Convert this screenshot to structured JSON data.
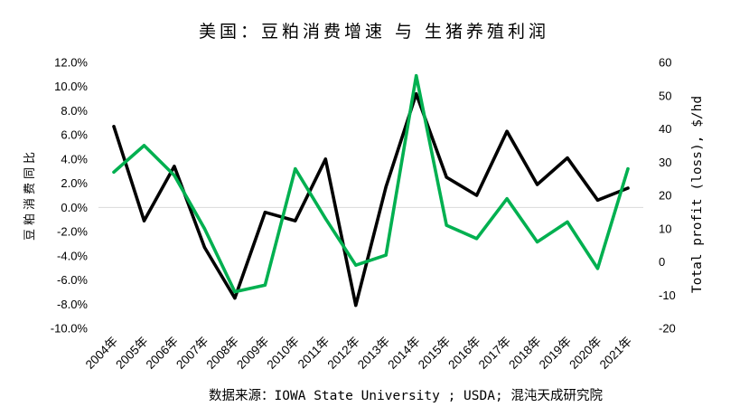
{
  "source": "数据来源：IOWA State University ; USDA; 混沌天成研究院",
  "chart_data": {
    "type": "line",
    "title": "美国：豆粕消费增速 与 生猪养殖利润",
    "ylabel": "豆粕消费同比",
    "y2label": "Total profit (loss), $/hd",
    "categories": [
      "2004年",
      "2005年",
      "2006年",
      "2007年",
      "2008年",
      "2009年",
      "2010年",
      "2011年",
      "2012年",
      "2013年",
      "2014年",
      "2015年",
      "2016年",
      "2017年",
      "2018年",
      "2019年",
      "2020年",
      "2021年"
    ],
    "ylim": [
      -10,
      12
    ],
    "yticks": [
      12,
      10,
      8,
      6,
      4,
      2,
      0,
      -2,
      -4,
      -6,
      -8,
      -10
    ],
    "ytick_labels": [
      "12.0%",
      "10.0%",
      "8.0%",
      "6.0%",
      "4.0%",
      "2.0%",
      "0.0%",
      "-2.0%",
      "-4.0%",
      "-6.0%",
      "-8.0%",
      "-10.0%"
    ],
    "y2lim": [
      -20,
      60
    ],
    "y2ticks": [
      60,
      50,
      40,
      30,
      20,
      10,
      0,
      -10,
      -20
    ],
    "grid": false,
    "legend": "none",
    "series": [
      {
        "secondary_axis": false,
        "color": "#000000",
        "values": [
          6.7,
          -1.1,
          3.4,
          -3.3,
          -7.5,
          -0.4,
          -1.1,
          4.0,
          -8.1,
          1.7,
          9.4,
          2.5,
          1.0,
          6.3,
          1.9,
          4.1,
          0.6,
          1.6
        ]
      },
      {
        "secondary_axis": true,
        "color": "#00B050",
        "values": [
          27,
          35,
          26,
          10,
          -9,
          -7,
          28,
          13,
          -1,
          2,
          56,
          11,
          7,
          19,
          6,
          12,
          -2,
          28
        ]
      }
    ]
  }
}
